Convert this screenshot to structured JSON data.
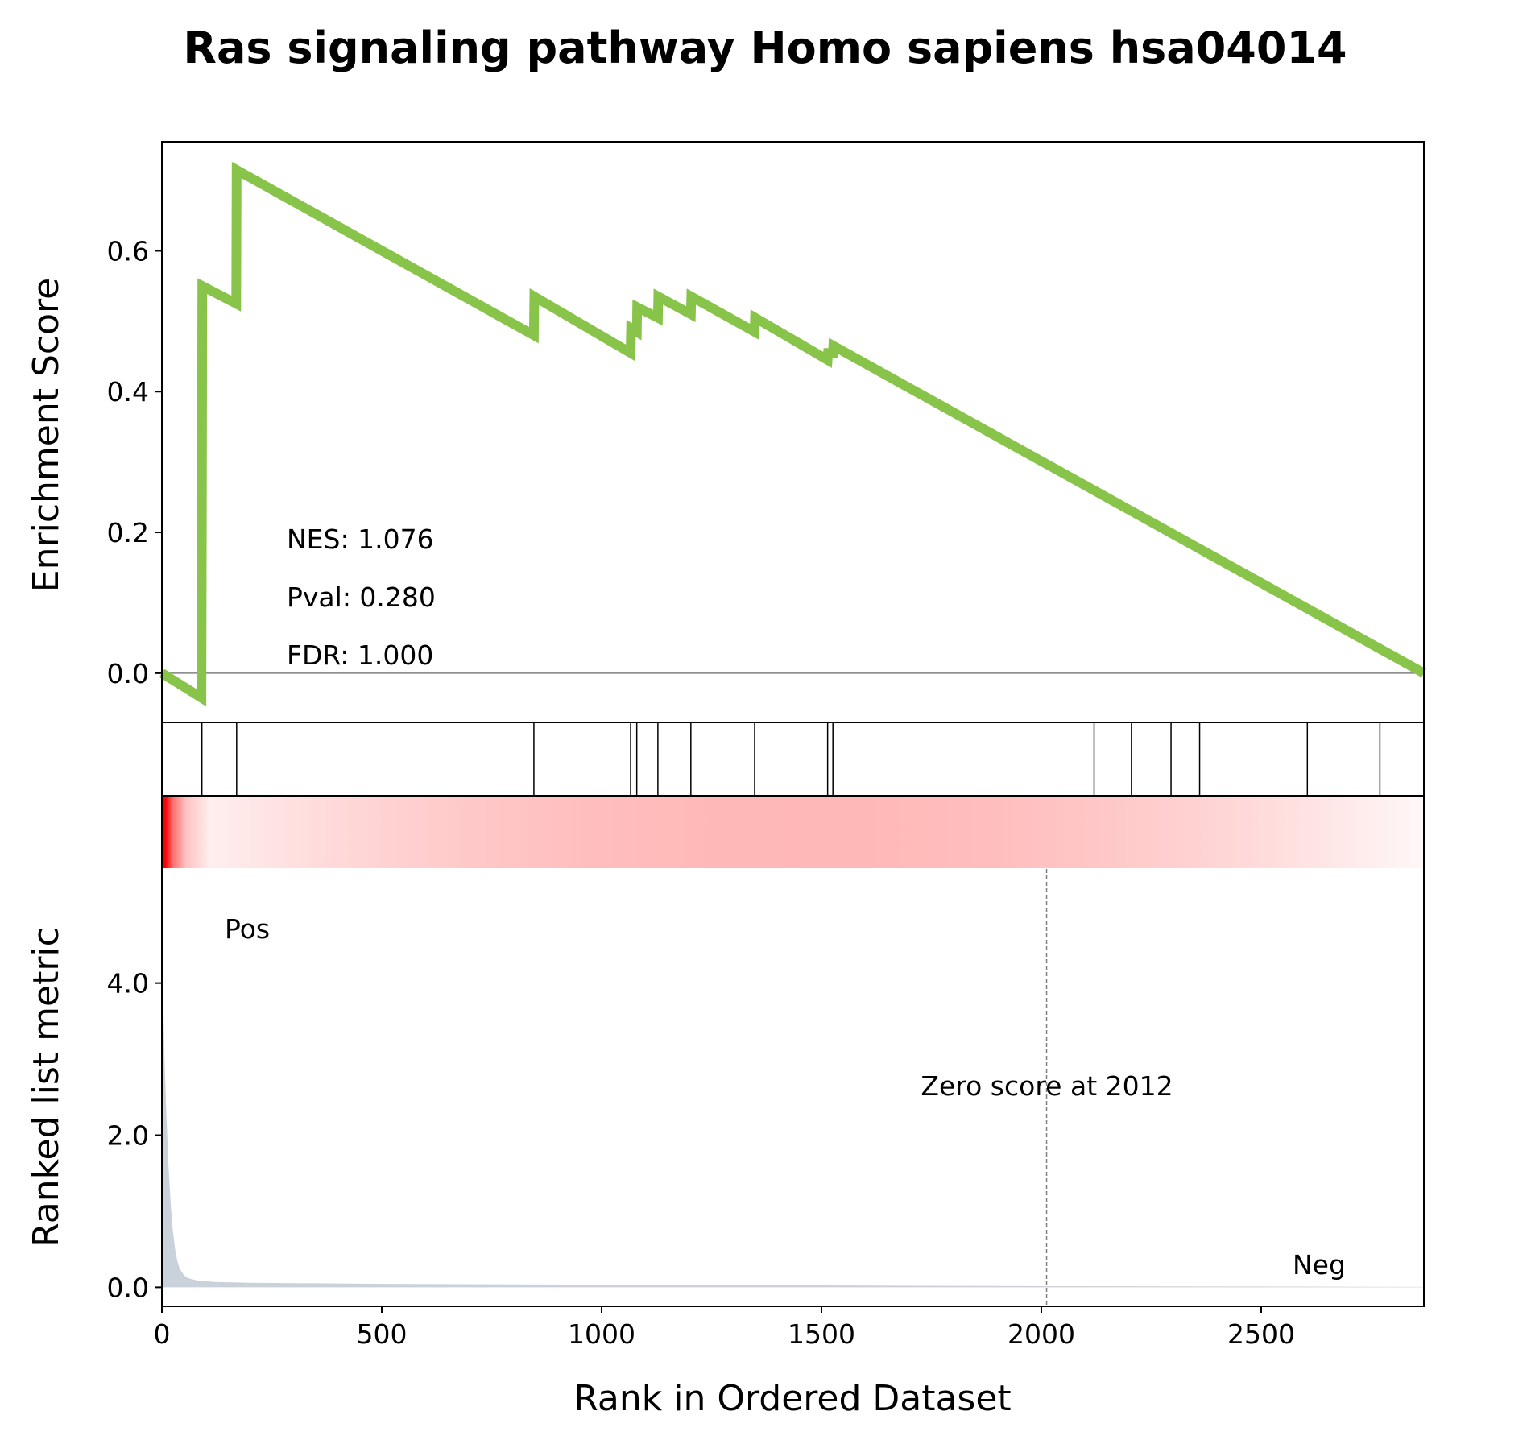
{
  "title": "Ras signaling pathway Homo sapiens hsa04014",
  "chart_data": [
    {
      "type": "line",
      "panel": "enrichment-score",
      "ylabel": "Enrichment Score",
      "yticks": [
        "0.0",
        "0.2",
        "0.4",
        "0.6"
      ],
      "ylim": [
        -0.07,
        0.755
      ],
      "xlim": [
        0,
        2870
      ],
      "color": "#88c34a",
      "points": [
        [
          0,
          0.0
        ],
        [
          90,
          -0.035
        ],
        [
          91,
          0.26
        ],
        [
          92,
          0.55
        ],
        [
          169,
          0.525
        ],
        [
          170,
          0.715
        ],
        [
          846,
          0.48
        ],
        [
          847,
          0.535
        ],
        [
          1066,
          0.455
        ],
        [
          1067,
          0.49
        ],
        [
          1080,
          0.485
        ],
        [
          1081,
          0.52
        ],
        [
          1128,
          0.505
        ],
        [
          1129,
          0.535
        ],
        [
          1203,
          0.51
        ],
        [
          1204,
          0.535
        ],
        [
          1348,
          0.485
        ],
        [
          1349,
          0.505
        ],
        [
          1514,
          0.445
        ],
        [
          1515,
          0.455
        ],
        [
          1526,
          0.455
        ],
        [
          1527,
          0.465
        ],
        [
          2870,
          0.0
        ]
      ],
      "zero_line": true,
      "stats": {
        "nes": "NES: 1.076",
        "pval": "Pval: 0.280",
        "fdr": "FDR: 1.000"
      }
    },
    {
      "type": "barcode",
      "panel": "hits",
      "hits": [
        91,
        170,
        846,
        1066,
        1080,
        1128,
        1203,
        1348,
        1514,
        1526,
        2120,
        2205,
        2295,
        2360,
        2605,
        2770
      ]
    },
    {
      "type": "heatmap",
      "panel": "rank-heatmap",
      "colors": [
        "#ff0000",
        "#fff8f8"
      ],
      "gradient_stops": [
        [
          0,
          1.0
        ],
        [
          8,
          1.0
        ],
        [
          25,
          0.55
        ],
        [
          55,
          0.22
        ],
        [
          110,
          0.04
        ],
        [
          2870,
          0.0
        ]
      ]
    },
    {
      "type": "area",
      "panel": "ranked-list",
      "ylabel": "Ranked list metric",
      "xlabel": "Rank in Ordered Dataset",
      "yticks": [
        "0.0",
        "2.0",
        "4.0"
      ],
      "xticks": [
        "0",
        "500",
        "1000",
        "1500",
        "2000",
        "2500"
      ],
      "ylim": [
        -0.25,
        5.5
      ],
      "xlim": [
        0,
        2870
      ],
      "fill": "#c9d2da",
      "points": [
        [
          0,
          4.6
        ],
        [
          3,
          3.8
        ],
        [
          6,
          3.0
        ],
        [
          10,
          2.3
        ],
        [
          15,
          1.6
        ],
        [
          20,
          1.1
        ],
        [
          25,
          0.75
        ],
        [
          30,
          0.5
        ],
        [
          35,
          0.35
        ],
        [
          40,
          0.25
        ],
        [
          50,
          0.16
        ],
        [
          60,
          0.12
        ],
        [
          80,
          0.09
        ],
        [
          120,
          0.07
        ],
        [
          200,
          0.06
        ],
        [
          500,
          0.045
        ],
        [
          1000,
          0.035
        ],
        [
          1500,
          0.025
        ],
        [
          2000,
          0.015
        ],
        [
          2500,
          0.01
        ],
        [
          2870,
          0.005
        ]
      ],
      "zero_rank": 2012,
      "zero_label": "Zero score at 2012",
      "pos_label": "Pos",
      "neg_label": "Neg",
      "pos_color": "#ff0000",
      "neg_color": "#0000ff"
    }
  ]
}
